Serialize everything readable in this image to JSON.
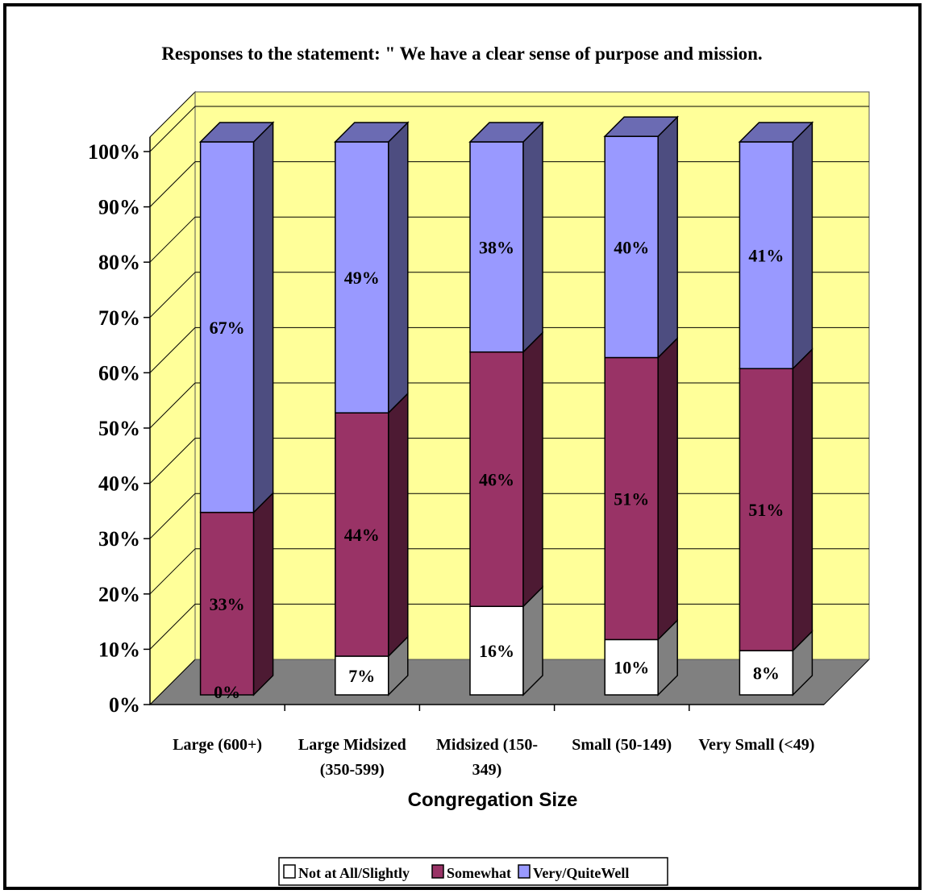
{
  "chart_data": {
    "type": "bar",
    "stacked": true,
    "percent_stacked": true,
    "three_d": true,
    "title": "Responses to the statement: \" We have a clear sense of purpose and mission.",
    "xlabel": "Congregation Size",
    "ylabel": "",
    "ylim": [
      0,
      100
    ],
    "y_ticks": [
      "0%",
      "10%",
      "20%",
      "30%",
      "40%",
      "50%",
      "60%",
      "70%",
      "80%",
      "90%",
      "100%"
    ],
    "categories": [
      [
        "Large (600+)"
      ],
      [
        "Large Midsized",
        "(350-599)"
      ],
      [
        "Midsized (150-",
        "349)"
      ],
      [
        "Small (50-149)"
      ],
      [
        "Very Small (<49)"
      ]
    ],
    "series": [
      {
        "name": "Not at All/Slightly",
        "values": [
          0,
          7,
          16,
          10,
          8
        ],
        "labels": [
          "0%",
          "7%",
          "16%",
          "10%",
          "8%"
        ],
        "color": "#ffffff"
      },
      {
        "name": "Somewhat",
        "values": [
          33,
          44,
          46,
          51,
          51
        ],
        "labels": [
          "33%",
          "44%",
          "46%",
          "51%",
          "51%"
        ],
        "color": "#993366"
      },
      {
        "name": "Very/QuiteWell",
        "values": [
          67,
          49,
          38,
          40,
          41
        ],
        "labels": [
          "67%",
          "49%",
          "38%",
          "40%",
          "41%"
        ],
        "color": "#9999ff"
      }
    ],
    "grid": true,
    "legend_position": "bottom",
    "wall_color": "#ffff99",
    "floor_color": "#808080"
  }
}
